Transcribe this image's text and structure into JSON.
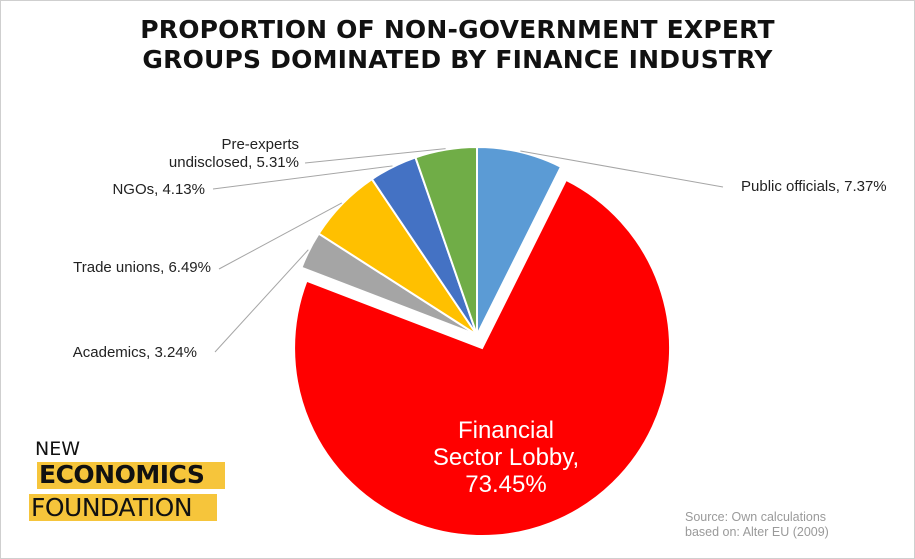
{
  "chart_data": {
    "type": "pie",
    "title": [
      "PROPORTION OF NON-GOVERNMENT EXPERT",
      "GROUPS DOMINATED BY FINANCE INDUSTRY"
    ],
    "slices": [
      {
        "name": "Public officials",
        "label": "Public officials, 7.37%",
        "value": 7.37,
        "color": "#5b9bd5"
      },
      {
        "name": "Financial Sector Lobby",
        "label": [
          "Financial",
          "Sector Lobby,",
          "73.45%"
        ],
        "value": 73.45,
        "color": "#ff0000",
        "exploded": true
      },
      {
        "name": "Academics",
        "label": "Academics, 3.24%",
        "value": 3.24,
        "color": "#a5a5a5"
      },
      {
        "name": "Trade unions",
        "label": "Trade unions, 6.49%",
        "value": 6.49,
        "color": "#ffc000"
      },
      {
        "name": "NGOs",
        "label": "NGOs, 4.13%",
        "value": 4.13,
        "color": "#4472c4"
      },
      {
        "name": "Pre-experts undisclosed",
        "label": [
          "Pre-experts",
          "undisclosed, 5.31%"
        ],
        "value": 5.31,
        "color": "#70ad47"
      }
    ],
    "legend": "none"
  },
  "source": [
    "Source: Own calculations",
    "based on: Alter EU (2009)"
  ],
  "logo": {
    "line1": "NEW",
    "line2": "ECONOMICS",
    "line3": "FOUNDATION",
    "accent": "#f6c53b"
  }
}
